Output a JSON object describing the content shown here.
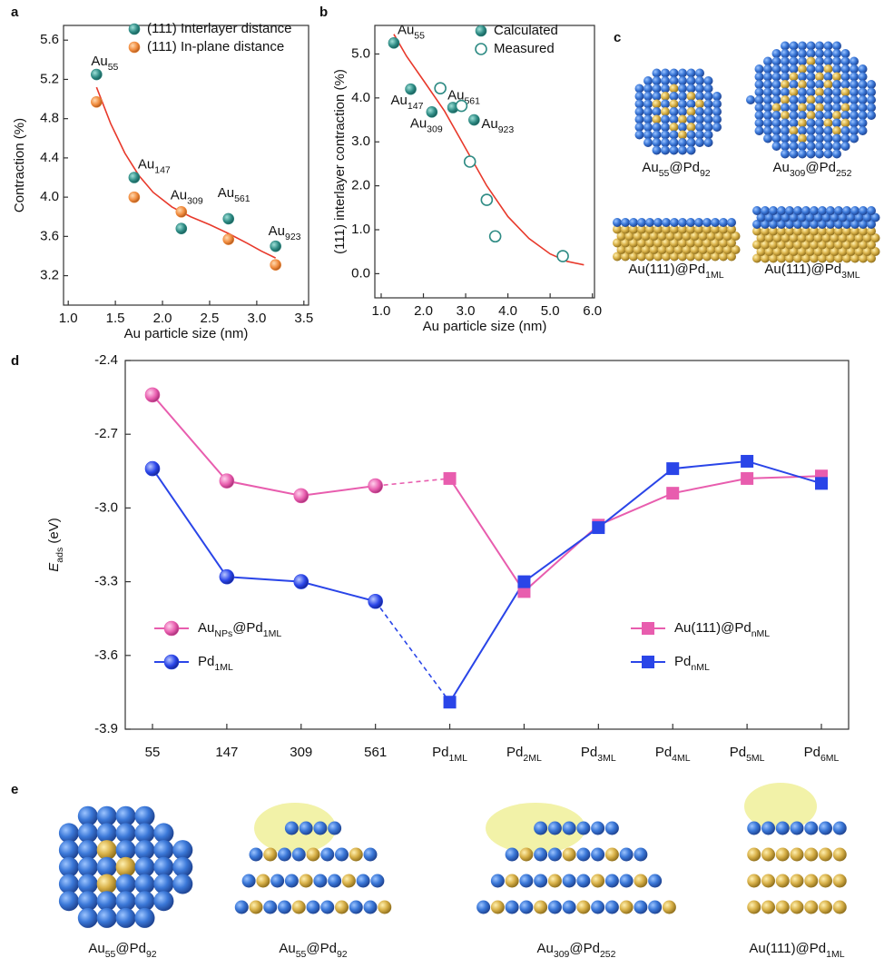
{
  "panel_labels": [
    "a",
    "b",
    "c",
    "d",
    "e"
  ],
  "chart_data": [
    {
      "type": "scatter",
      "xlabel": "Au particle size (nm)",
      "ylabel": "Contraction (%)",
      "xlim": [
        0.95,
        3.55
      ],
      "ylim": [
        2.9,
        5.75
      ],
      "xticks": [
        {
          "value": 1,
          "label": "1.0"
        },
        1.5,
        {
          "value": 2,
          "label": "2.0"
        },
        2.5,
        {
          "value": 3,
          "label": "3.0"
        },
        3.5
      ],
      "yticks": [
        5.6,
        5.2,
        4.8,
        4.4,
        {
          "value": 4,
          "label": "4.0"
        },
        3.6,
        3.2
      ],
      "series": [
        {
          "name": "(111) Interlayer distance",
          "color": "#2e8b84",
          "marker": "filled",
          "x": [
            1.3,
            1.7,
            2.2,
            2.7,
            3.2
          ],
          "values": [
            5.25,
            4.2,
            3.68,
            3.78,
            3.5
          ],
          "point_labels": [
            [
              {
                "t": "Au"
              },
              {
                "t": "55",
                "sub": true
              }
            ],
            [
              {
                "t": "Au"
              },
              {
                "t": "147",
                "sub": true
              }
            ],
            [
              {
                "t": "Au"
              },
              {
                "t": "309",
                "sub": true
              }
            ],
            [
              {
                "t": "Au"
              },
              {
                "t": "561",
                "sub": true
              }
            ],
            [
              {
                "t": "Au"
              },
              {
                "t": "923",
                "sub": true
              }
            ]
          ],
          "label_color": "#111111"
        },
        {
          "name": "(111) In-plane distance",
          "color": "#f08a3c",
          "marker": "filled",
          "x": [
            1.3,
            1.7,
            2.2,
            2.7,
            3.2
          ],
          "values": [
            4.97,
            4.0,
            3.85,
            3.57,
            3.31
          ]
        }
      ],
      "fit": {
        "color": "#e8392b",
        "x": [
          1.3,
          1.45,
          1.6,
          1.75,
          1.9,
          2.1,
          2.3,
          2.5,
          2.7,
          2.9,
          3.05,
          3.2
        ],
        "y": [
          5.12,
          4.75,
          4.45,
          4.22,
          4.05,
          3.9,
          3.8,
          3.72,
          3.63,
          3.53,
          3.45,
          3.38
        ]
      }
    },
    {
      "type": "scatter",
      "xlabel": "Au particle size (nm)",
      "ylabel": "(111) interlayer contraction (%)",
      "xlim": [
        0.85,
        6.05
      ],
      "ylim": [
        -0.55,
        5.65
      ],
      "xticks": [
        {
          "value": 1,
          "label": "1.0"
        },
        {
          "value": 2,
          "label": "2.0"
        },
        {
          "value": 3,
          "label": "3.0"
        },
        {
          "value": 4,
          "label": "4.0"
        },
        {
          "value": 5,
          "label": "5.0"
        },
        {
          "value": 6,
          "label": "6.0"
        }
      ],
      "yticks": [
        {
          "value": 0,
          "label": "0.0"
        },
        {
          "value": 1,
          "label": "1.0"
        },
        {
          "value": 2,
          "label": "2.0"
        },
        {
          "value": 3,
          "label": "3.0"
        },
        {
          "value": 4,
          "label": "4.0"
        },
        {
          "value": 5,
          "label": "5.0"
        }
      ],
      "series": [
        {
          "name": "Calculated",
          "color": "#2e8b84",
          "marker": "filled",
          "x": [
            1.3,
            1.7,
            2.2,
            2.7,
            3.2
          ],
          "values": [
            5.25,
            4.2,
            3.68,
            3.78,
            3.5
          ],
          "point_labels": [
            [
              {
                "t": "Au"
              },
              {
                "t": "55",
                "sub": true
              }
            ],
            [
              {
                "t": "Au"
              },
              {
                "t": "147",
                "sub": true
              }
            ],
            [
              {
                "t": "Au"
              },
              {
                "t": "309",
                "sub": true
              }
            ],
            [
              {
                "t": "Au"
              },
              {
                "t": "561",
                "sub": true
              }
            ],
            [
              {
                "t": "Au"
              },
              {
                "t": "923",
                "sub": true
              }
            ]
          ],
          "label_color": "#2e8b84"
        },
        {
          "name": "Measured",
          "color": "#2e8b84",
          "marker": "open",
          "x": [
            2.4,
            2.9,
            3.1,
            3.5,
            3.7,
            5.3
          ],
          "values": [
            4.22,
            3.82,
            2.55,
            1.68,
            0.85,
            0.4
          ]
        }
      ],
      "fit": {
        "color": "#e8392b",
        "x": [
          1.3,
          1.6,
          2.0,
          2.5,
          3.0,
          3.5,
          4.0,
          4.5,
          5.0,
          5.4,
          5.8
        ],
        "y": [
          5.45,
          4.95,
          4.4,
          3.7,
          2.85,
          2.0,
          1.3,
          0.8,
          0.45,
          0.28,
          0.2
        ]
      }
    },
    {
      "type": "line",
      "ylabel": [
        {
          "t": "E",
          "italic": true
        },
        {
          "t": "ads",
          "sub": true
        },
        {
          "t": " (eV)"
        }
      ],
      "ylim": [
        -3.9,
        -2.4
      ],
      "yticks": [
        -2.4,
        -2.7,
        {
          "value": -3,
          "label": "-3.0"
        },
        -3.3,
        -3.6,
        -3.9
      ],
      "categories": [
        [
          {
            "t": "55"
          }
        ],
        [
          {
            "t": "147"
          }
        ],
        [
          {
            "t": "309"
          }
        ],
        [
          {
            "t": "561"
          }
        ],
        [
          {
            "t": "Pd"
          },
          {
            "t": "1ML",
            "sub": true
          }
        ],
        [
          {
            "t": "Pd"
          },
          {
            "t": "2ML",
            "sub": true
          }
        ],
        [
          {
            "t": "Pd"
          },
          {
            "t": "3ML",
            "sub": true
          }
        ],
        [
          {
            "t": "Pd"
          },
          {
            "t": "4ML",
            "sub": true
          }
        ],
        [
          {
            "t": "Pd"
          },
          {
            "t": "5ML",
            "sub": true
          }
        ],
        [
          {
            "t": "Pd"
          },
          {
            "t": "6ML",
            "sub": true
          }
        ]
      ],
      "series": [
        {
          "name": [
            {
              "t": "Au"
            },
            {
              "t": "NPs",
              "sub": true
            },
            {
              "t": "@Pd"
            },
            {
              "t": "1ML",
              "sub": true
            }
          ],
          "color": "#e85dae",
          "marker": "circle",
          "link_series": 2,
          "values": [
            -2.54,
            -2.89,
            -2.95,
            -2.91,
            null,
            null,
            null,
            null,
            null,
            null
          ]
        },
        {
          "name": [
            {
              "t": "Pd"
            },
            {
              "t": "1ML",
              "sub": true
            }
          ],
          "color": "#2a45e8",
          "marker": "circle",
          "link_series": 3,
          "values": [
            -2.84,
            -3.28,
            -3.3,
            -3.38,
            null,
            null,
            null,
            null,
            null,
            null
          ]
        },
        {
          "name": [
            {
              "t": "Au(111)@Pd"
            },
            {
              "t": "nML",
              "sub": true
            }
          ],
          "color": "#e85dae",
          "marker": "square",
          "values": [
            null,
            null,
            null,
            null,
            -2.88,
            -3.34,
            -3.07,
            -2.94,
            -2.88,
            -2.87
          ]
        },
        {
          "name": [
            {
              "t": "Pd"
            },
            {
              "t": "nML",
              "sub": true
            }
          ],
          "color": "#2a45e8",
          "marker": "square",
          "values": [
            null,
            null,
            null,
            null,
            -3.79,
            -3.3,
            -3.08,
            -2.84,
            -2.81,
            -2.9
          ]
        }
      ]
    }
  ],
  "illustrations": {
    "c": [
      [
        {
          "t": "Au"
        },
        {
          "t": "55",
          "sub": true
        },
        {
          "t": "@Pd"
        },
        {
          "t": "92",
          "sub": true
        }
      ],
      [
        {
          "t": "Au"
        },
        {
          "t": "309",
          "sub": true
        },
        {
          "t": "@Pd"
        },
        {
          "t": "252",
          "sub": true
        }
      ],
      [
        {
          "t": "Au(111)@Pd"
        },
        {
          "t": "1ML",
          "sub": true
        }
      ],
      [
        {
          "t": "Au(111)@Pd"
        },
        {
          "t": "3ML",
          "sub": true
        }
      ]
    ],
    "e": [
      [
        {
          "t": "Au"
        },
        {
          "t": "55",
          "sub": true
        },
        {
          "t": "@Pd"
        },
        {
          "t": "92",
          "sub": true
        }
      ],
      [
        {
          "t": "Au"
        },
        {
          "t": "55",
          "sub": true
        },
        {
          "t": "@Pd"
        },
        {
          "t": "92",
          "sub": true
        }
      ],
      [
        {
          "t": "Au"
        },
        {
          "t": "309",
          "sub": true
        },
        {
          "t": "@Pd"
        },
        {
          "t": "252",
          "sub": true
        }
      ],
      [
        {
          "t": "Au(111)@Pd"
        },
        {
          "t": "1ML",
          "sub": true
        }
      ]
    ]
  }
}
